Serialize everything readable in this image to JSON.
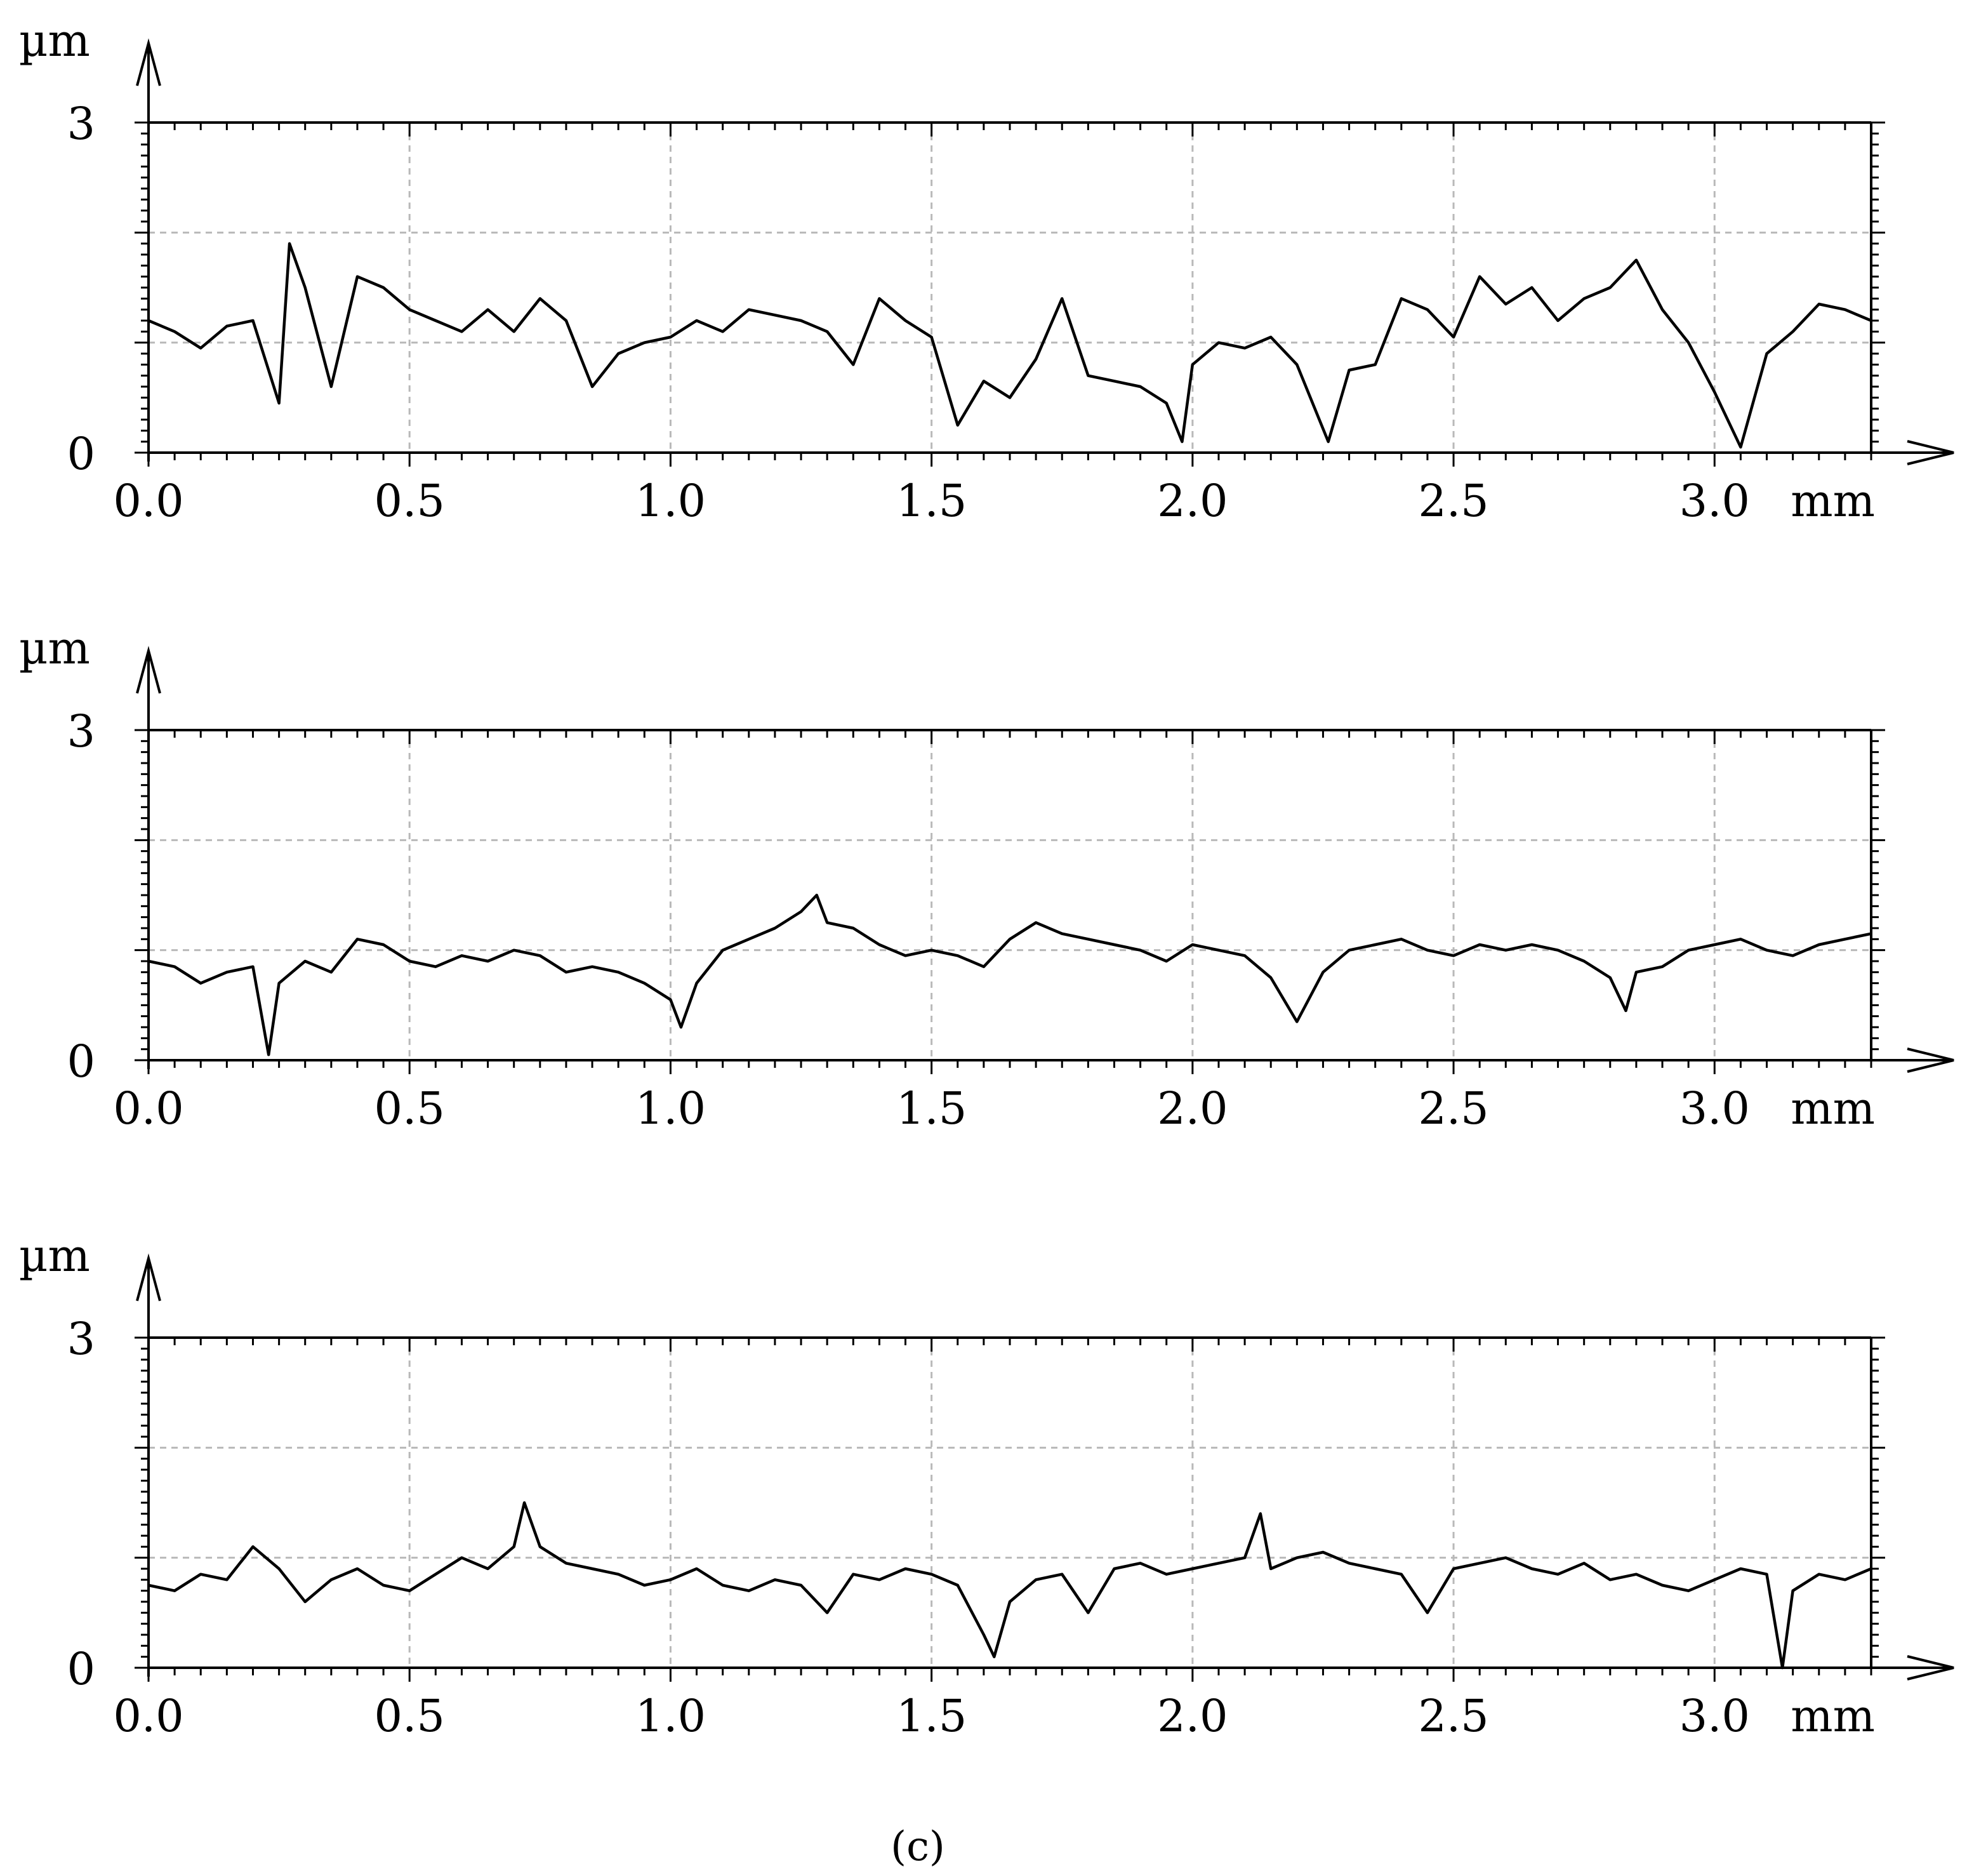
{
  "caption": "(c)",
  "chart_data": [
    {
      "type": "line",
      "y_unit": "µm",
      "x_unit": "mm",
      "xlim": [
        0,
        3.3
      ],
      "ylim": [
        0,
        3
      ],
      "x_ticks": [
        "0.0",
        "0.5",
        "1.0",
        "1.5",
        "2.0",
        "2.5",
        "3.0"
      ],
      "y_ticks": [
        "0",
        "3"
      ],
      "grid": true,
      "series": [
        {
          "x": [
            0.0,
            0.05,
            0.1,
            0.15,
            0.2,
            0.25,
            0.27,
            0.3,
            0.35,
            0.4,
            0.45,
            0.5,
            0.55,
            0.6,
            0.65,
            0.7,
            0.75,
            0.8,
            0.85,
            0.9,
            0.95,
            1.0,
            1.05,
            1.1,
            1.15,
            1.2,
            1.25,
            1.3,
            1.35,
            1.4,
            1.45,
            1.5,
            1.55,
            1.6,
            1.65,
            1.7,
            1.75,
            1.8,
            1.85,
            1.9,
            1.95,
            1.98,
            2.0,
            2.05,
            2.1,
            2.15,
            2.2,
            2.26,
            2.3,
            2.35,
            2.4,
            2.45,
            2.5,
            2.55,
            2.6,
            2.65,
            2.7,
            2.75,
            2.8,
            2.85,
            2.9,
            2.95,
            3.0,
            3.05,
            3.1,
            3.15,
            3.2,
            3.25,
            3.3
          ],
          "y": [
            1.2,
            1.1,
            0.95,
            1.15,
            1.2,
            0.45,
            1.9,
            1.5,
            0.6,
            1.6,
            1.5,
            1.3,
            1.2,
            1.1,
            1.3,
            1.1,
            1.4,
            1.2,
            0.6,
            0.9,
            1.0,
            1.05,
            1.2,
            1.1,
            1.3,
            1.25,
            1.2,
            1.1,
            0.8,
            1.4,
            1.2,
            1.05,
            0.25,
            0.65,
            0.5,
            0.85,
            1.4,
            0.7,
            0.65,
            0.6,
            0.45,
            0.1,
            0.8,
            1.0,
            0.95,
            1.05,
            0.8,
            0.1,
            0.75,
            0.8,
            1.4,
            1.3,
            1.05,
            1.6,
            1.35,
            1.5,
            1.2,
            1.4,
            1.5,
            1.75,
            1.3,
            1.0,
            0.55,
            0.05,
            0.9,
            1.1,
            1.35,
            1.3,
            1.2
          ]
        }
      ]
    },
    {
      "type": "line",
      "y_unit": "µm",
      "x_unit": "mm",
      "xlim": [
        0,
        3.3
      ],
      "ylim": [
        0,
        3
      ],
      "x_ticks": [
        "0.0",
        "0.5",
        "1.0",
        "1.5",
        "2.0",
        "2.5",
        "3.0"
      ],
      "y_ticks": [
        "0",
        "3"
      ],
      "grid": true,
      "series": [
        {
          "x": [
            0.0,
            0.05,
            0.1,
            0.15,
            0.2,
            0.23,
            0.25,
            0.3,
            0.35,
            0.4,
            0.45,
            0.5,
            0.55,
            0.6,
            0.65,
            0.7,
            0.75,
            0.8,
            0.85,
            0.9,
            0.95,
            1.0,
            1.02,
            1.05,
            1.1,
            1.15,
            1.2,
            1.25,
            1.28,
            1.3,
            1.35,
            1.4,
            1.45,
            1.5,
            1.55,
            1.6,
            1.65,
            1.7,
            1.75,
            1.8,
            1.85,
            1.9,
            1.95,
            2.0,
            2.05,
            2.1,
            2.15,
            2.2,
            2.25,
            2.3,
            2.35,
            2.4,
            2.45,
            2.5,
            2.55,
            2.6,
            2.65,
            2.7,
            2.75,
            2.8,
            2.83,
            2.85,
            2.9,
            2.95,
            3.0,
            3.05,
            3.1,
            3.15,
            3.2,
            3.25,
            3.3
          ],
          "y": [
            0.9,
            0.85,
            0.7,
            0.8,
            0.85,
            0.05,
            0.7,
            0.9,
            0.8,
            1.1,
            1.05,
            0.9,
            0.85,
            0.95,
            0.9,
            1.0,
            0.95,
            0.8,
            0.85,
            0.8,
            0.7,
            0.55,
            0.3,
            0.7,
            1.0,
            1.1,
            1.2,
            1.35,
            1.5,
            1.25,
            1.2,
            1.05,
            0.95,
            1.0,
            0.95,
            0.85,
            1.1,
            1.25,
            1.15,
            1.1,
            1.05,
            1.0,
            0.9,
            1.05,
            1.0,
            0.95,
            0.75,
            0.35,
            0.8,
            1.0,
            1.05,
            1.1,
            1.0,
            0.95,
            1.05,
            1.0,
            1.05,
            1.0,
            0.9,
            0.75,
            0.45,
            0.8,
            0.85,
            1.0,
            1.05,
            1.1,
            1.0,
            0.95,
            1.05,
            1.1,
            1.15
          ]
        }
      ]
    },
    {
      "type": "line",
      "y_unit": "µm",
      "x_unit": "mm",
      "xlim": [
        0,
        3.3
      ],
      "ylim": [
        0,
        3
      ],
      "x_ticks": [
        "0.0",
        "0.5",
        "1.0",
        "1.5",
        "2.0",
        "2.5",
        "3.0"
      ],
      "y_ticks": [
        "0",
        "3"
      ],
      "grid": true,
      "series": [
        {
          "x": [
            0.0,
            0.05,
            0.1,
            0.15,
            0.2,
            0.25,
            0.3,
            0.35,
            0.4,
            0.45,
            0.5,
            0.55,
            0.6,
            0.65,
            0.7,
            0.72,
            0.75,
            0.8,
            0.85,
            0.9,
            0.95,
            1.0,
            1.05,
            1.1,
            1.15,
            1.2,
            1.25,
            1.3,
            1.35,
            1.4,
            1.45,
            1.5,
            1.55,
            1.6,
            1.62,
            1.65,
            1.7,
            1.75,
            1.8,
            1.85,
            1.9,
            1.95,
            2.0,
            2.05,
            2.1,
            2.13,
            2.15,
            2.2,
            2.25,
            2.3,
            2.35,
            2.4,
            2.45,
            2.5,
            2.55,
            2.6,
            2.65,
            2.7,
            2.75,
            2.8,
            2.85,
            2.9,
            2.95,
            3.0,
            3.05,
            3.1,
            3.13,
            3.15,
            3.2,
            3.25,
            3.3
          ],
          "y": [
            0.75,
            0.7,
            0.85,
            0.8,
            1.1,
            0.9,
            0.6,
            0.8,
            0.9,
            0.75,
            0.7,
            0.85,
            1.0,
            0.9,
            1.1,
            1.5,
            1.1,
            0.95,
            0.9,
            0.85,
            0.75,
            0.8,
            0.9,
            0.75,
            0.7,
            0.8,
            0.75,
            0.5,
            0.85,
            0.8,
            0.9,
            0.85,
            0.75,
            0.3,
            0.1,
            0.6,
            0.8,
            0.85,
            0.5,
            0.9,
            0.95,
            0.85,
            0.9,
            0.95,
            1.0,
            1.4,
            0.9,
            1.0,
            1.05,
            0.95,
            0.9,
            0.85,
            0.5,
            0.9,
            0.95,
            1.0,
            0.9,
            0.85,
            0.95,
            0.8,
            0.85,
            0.75,
            0.7,
            0.8,
            0.9,
            0.85,
            0.0,
            0.7,
            0.85,
            0.8,
            0.9
          ]
        }
      ]
    }
  ]
}
